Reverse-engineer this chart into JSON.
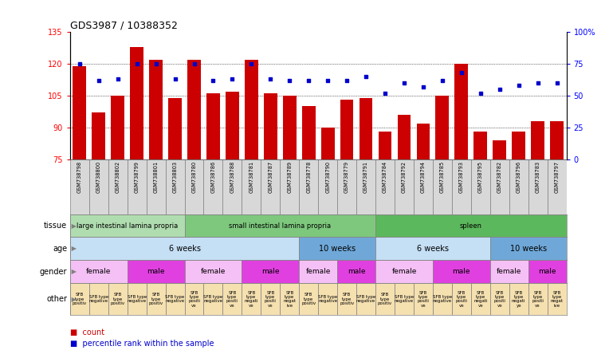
{
  "title": "GDS3987 / 10388352",
  "samples": [
    "GSM738798",
    "GSM738800",
    "GSM738802",
    "GSM738799",
    "GSM738801",
    "GSM738803",
    "GSM738780",
    "GSM738786",
    "GSM738788",
    "GSM738781",
    "GSM738787",
    "GSM738789",
    "GSM738778",
    "GSM738790",
    "GSM738779",
    "GSM738791",
    "GSM738784",
    "GSM738792",
    "GSM738794",
    "GSM738785",
    "GSM738793",
    "GSM738795",
    "GSM738782",
    "GSM738796",
    "GSM738783",
    "GSM738797"
  ],
  "bar_values": [
    119,
    97,
    105,
    128,
    122,
    104,
    122,
    106,
    107,
    122,
    106,
    105,
    100,
    90,
    103,
    104,
    88,
    96,
    92,
    105,
    120,
    88,
    84,
    88,
    93,
    93
  ],
  "percentile_values": [
    75,
    62,
    63,
    75,
    75,
    63,
    75,
    62,
    63,
    75,
    63,
    62,
    62,
    62,
    62,
    65,
    52,
    60,
    57,
    62,
    68,
    52,
    55,
    58,
    60,
    60
  ],
  "ylim_left": [
    75,
    135
  ],
  "ylim_right": [
    0,
    100
  ],
  "yticks_left": [
    75,
    90,
    105,
    120,
    135
  ],
  "yticks_right": [
    0,
    25,
    50,
    75,
    100
  ],
  "bar_color": "#cc0000",
  "dot_color": "#0000cc",
  "tissue_groups": [
    {
      "label": "large intestinal lamina propria",
      "start": 0,
      "end": 6,
      "color": "#b0ddb0"
    },
    {
      "label": "small intestinal lamina propria",
      "start": 6,
      "end": 16,
      "color": "#7dc87d"
    },
    {
      "label": "spleen",
      "start": 16,
      "end": 26,
      "color": "#5cb85c"
    }
  ],
  "age_groups": [
    {
      "label": "6 weeks",
      "start": 0,
      "end": 12,
      "color": "#c5dff5"
    },
    {
      "label": "10 weeks",
      "start": 12,
      "end": 16,
      "color": "#6fa8d8"
    },
    {
      "label": "6 weeks",
      "start": 16,
      "end": 22,
      "color": "#c5dff5"
    },
    {
      "label": "10 weeks",
      "start": 22,
      "end": 26,
      "color": "#6fa8d8"
    }
  ],
  "gender_groups": [
    {
      "label": "female",
      "start": 0,
      "end": 3,
      "color": "#f5c0f5"
    },
    {
      "label": "male",
      "start": 3,
      "end": 6,
      "color": "#e040e0"
    },
    {
      "label": "female",
      "start": 6,
      "end": 9,
      "color": "#f5c0f5"
    },
    {
      "label": "male",
      "start": 9,
      "end": 12,
      "color": "#e040e0"
    },
    {
      "label": "female",
      "start": 12,
      "end": 14,
      "color": "#f5c0f5"
    },
    {
      "label": "male",
      "start": 14,
      "end": 16,
      "color": "#e040e0"
    },
    {
      "label": "female",
      "start": 16,
      "end": 19,
      "color": "#f5c0f5"
    },
    {
      "label": "male",
      "start": 19,
      "end": 22,
      "color": "#e040e0"
    },
    {
      "label": "female",
      "start": 22,
      "end": 24,
      "color": "#f5c0f5"
    },
    {
      "label": "male",
      "start": 24,
      "end": 26,
      "color": "#e040e0"
    }
  ],
  "other_groups": [
    {
      "label": "SFB\ntype\npositiv",
      "start": 0,
      "end": 1,
      "color": "#f5e0b0"
    },
    {
      "label": "SFB type\nnegative",
      "start": 1,
      "end": 2,
      "color": "#f5e0b0"
    },
    {
      "label": "SFB\ntype\npositiv",
      "start": 2,
      "end": 3,
      "color": "#f5e0b0"
    },
    {
      "label": "SFB type\nnegative",
      "start": 3,
      "end": 4,
      "color": "#f5e0b0"
    },
    {
      "label": "SFB\ntype\npositiv",
      "start": 4,
      "end": 5,
      "color": "#f5e0b0"
    },
    {
      "label": "SFB type\nnegative",
      "start": 5,
      "end": 6,
      "color": "#f5e0b0"
    },
    {
      "label": "SFB\ntype\npositi\nve",
      "start": 6,
      "end": 7,
      "color": "#f5e0b0"
    },
    {
      "label": "SFB type\nnegative",
      "start": 7,
      "end": 8,
      "color": "#f5e0b0"
    },
    {
      "label": "SFB\ntype\npositi\nve",
      "start": 8,
      "end": 9,
      "color": "#f5e0b0"
    },
    {
      "label": "SFB\ntype\nnegati\nve",
      "start": 9,
      "end": 10,
      "color": "#f5e0b0"
    },
    {
      "label": "SFB\ntype\npositi\nve",
      "start": 10,
      "end": 11,
      "color": "#f5e0b0"
    },
    {
      "label": "SFB\ntype\nnegat\nive",
      "start": 11,
      "end": 12,
      "color": "#f5e0b0"
    },
    {
      "label": "SFB\ntype\npositiv",
      "start": 12,
      "end": 13,
      "color": "#f5e0b0"
    },
    {
      "label": "SFB type\nnegative",
      "start": 13,
      "end": 14,
      "color": "#f5e0b0"
    },
    {
      "label": "SFB\ntype\npositiv",
      "start": 14,
      "end": 15,
      "color": "#f5e0b0"
    },
    {
      "label": "SFB type\nnegative",
      "start": 15,
      "end": 16,
      "color": "#f5e0b0"
    },
    {
      "label": "SFB\ntype\npositiv",
      "start": 16,
      "end": 17,
      "color": "#f5e0b0"
    },
    {
      "label": "SFB type\nnegative",
      "start": 17,
      "end": 18,
      "color": "#f5e0b0"
    },
    {
      "label": "SFB\ntype\npositi\nve",
      "start": 18,
      "end": 19,
      "color": "#f5e0b0"
    },
    {
      "label": "SFB type\nnegative",
      "start": 19,
      "end": 20,
      "color": "#f5e0b0"
    },
    {
      "label": "SFB\ntype\npositi\nve",
      "start": 20,
      "end": 21,
      "color": "#f5e0b0"
    },
    {
      "label": "SFB\ntype\nnegati\nve",
      "start": 21,
      "end": 22,
      "color": "#f5e0b0"
    },
    {
      "label": "SFB\ntype\npositi\nve",
      "start": 22,
      "end": 23,
      "color": "#f5e0b0"
    },
    {
      "label": "SFB\ntype\nnegati\nye",
      "start": 23,
      "end": 24,
      "color": "#f5e0b0"
    },
    {
      "label": "SFB\ntype\npositi\nve",
      "start": 24,
      "end": 25,
      "color": "#f5e0b0"
    },
    {
      "label": "SFB\ntype\nnegat\nive",
      "start": 25,
      "end": 26,
      "color": "#f5e0b0"
    }
  ],
  "row_labels": [
    "tissue",
    "age",
    "gender",
    "other"
  ],
  "legend_bar_label": "count",
  "legend_dot_label": "percentile rank within the sample"
}
